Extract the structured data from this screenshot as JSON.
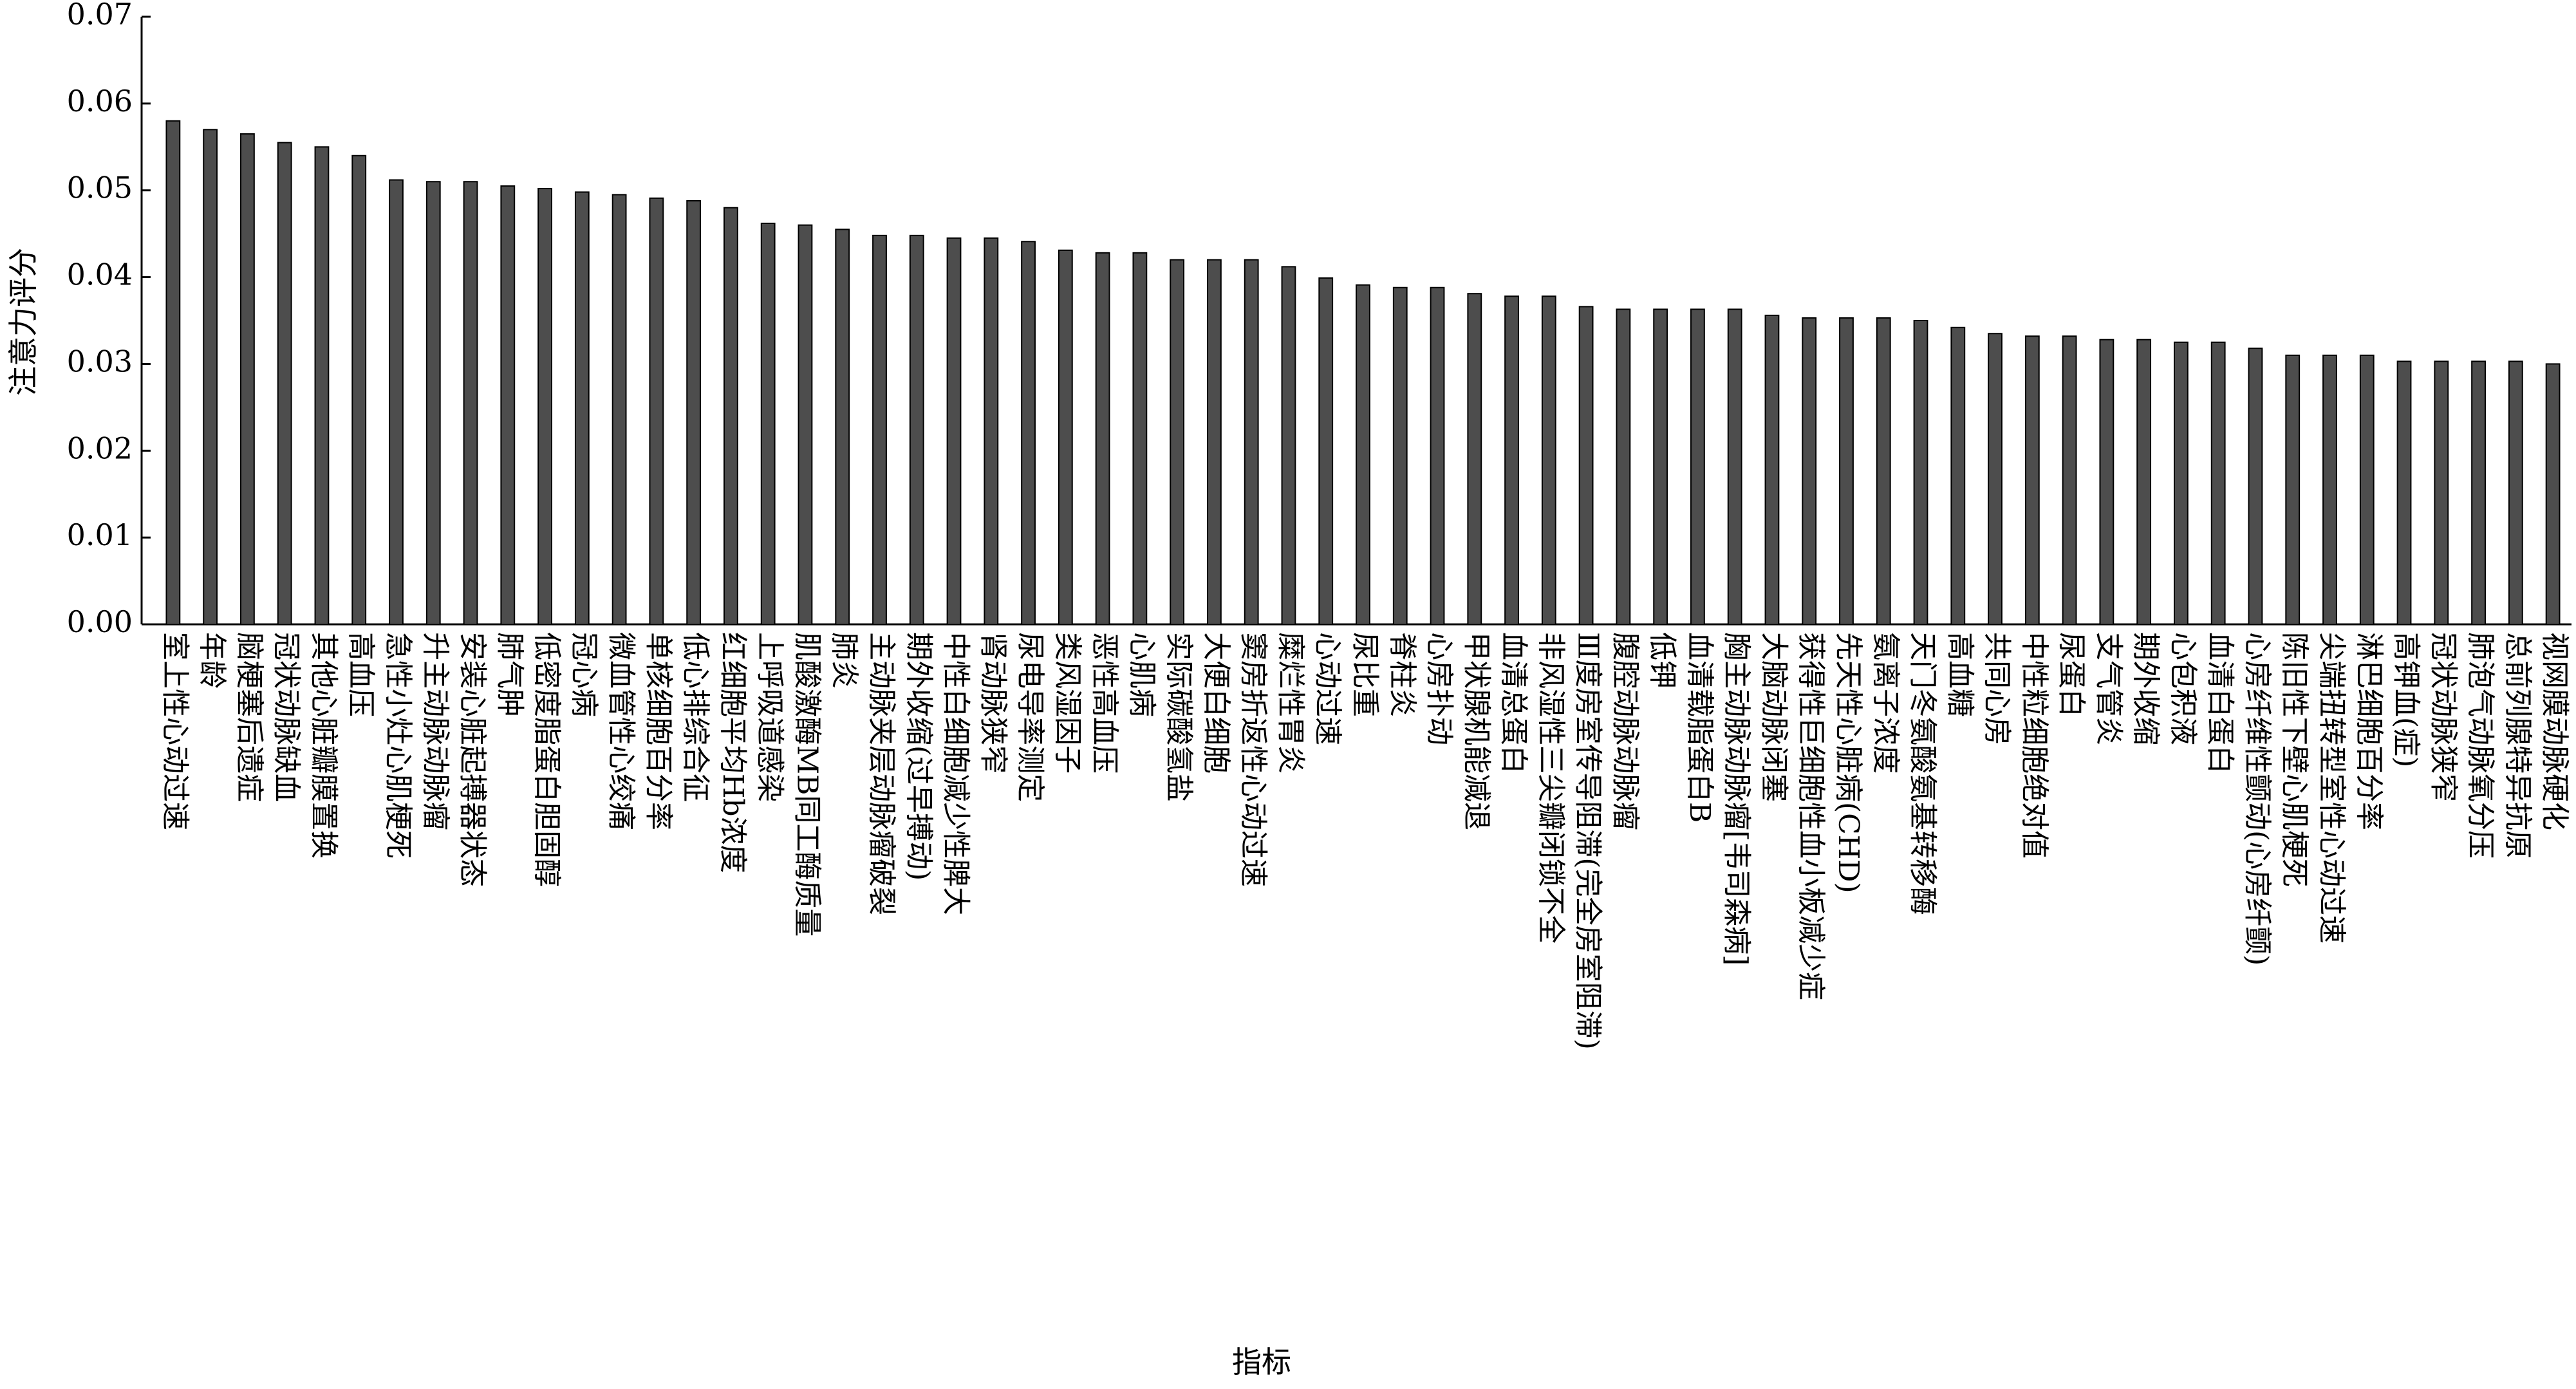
{
  "chart_data": {
    "type": "bar",
    "ylabel": "注意力评分",
    "xlabel": "指标",
    "color": "#4d4d4d",
    "categories": [
      "室上性心动过速",
      "年龄",
      "脑梗塞后遗症",
      "冠状动脉缺血",
      "其他心脏瓣膜置换",
      "高血压",
      "急性小灶心肌梗死",
      "升主动脉动脉瘤",
      "安装心脏起搏器状态",
      "肺气肿",
      "低密度脂蛋白胆固醇",
      "冠心病",
      "微血管性心绞痛",
      "单核细胞百分率",
      "低心排综合征",
      "红细胞平均Hb浓度",
      "上呼吸道感染",
      "肌酸激酶MB同工酶质量",
      "肺炎",
      "主动脉夹层动脉瘤破裂",
      "期外收缩(过早搏动)",
      "中性白细胞减少性脾大",
      "肾动脉狭窄",
      "尿电导率测定",
      "类风湿因子",
      "恶性高血压",
      "心肌病",
      "实际碳酸氢盐",
      "大便白细胞",
      "窦房折返性心动过速",
      "糜烂性胃炎",
      "心动过速",
      "尿比重",
      "脊柱炎",
      "心房扑动",
      "甲状腺机能减退",
      "血清总蛋白",
      "非风湿性三尖瓣闭锁不全",
      "Ⅲ度房室传导阻滞(完全房室阻滞)",
      "腹腔动脉动脉瘤",
      "低钾",
      "血清载脂蛋白B",
      "胸主动脉动脉瘤[韦司森病]",
      "大脑动脉闭塞",
      "获得性巨细胞性血小板减少症",
      "先天性心脏病(CHD)",
      "氨离子浓度",
      "天门冬氨酸氨基转移酶",
      "高血糖",
      "共同心房",
      "中性粒细胞绝对值",
      "尿蛋白",
      "支气管炎",
      "期外收缩",
      "心包积液",
      "血清白蛋白",
      "心房纤维性颤动(心房纤颤)",
      "陈旧性下壁心肌梗死",
      "尖端扭转型室性心动过速",
      "淋巴细胞百分率",
      "高钾血(症)",
      "冠状动脉狭窄",
      "肺泡气动脉氧分压",
      "总前列腺特异抗原",
      "视网膜动脉硬化"
    ],
    "values": [
      0.058,
      0.057,
      0.0565,
      0.0555,
      0.055,
      0.054,
      0.0512,
      0.051,
      0.051,
      0.0505,
      0.0502,
      0.0498,
      0.0495,
      0.0491,
      0.0488,
      0.048,
      0.0462,
      0.046,
      0.0455,
      0.0448,
      0.0448,
      0.0445,
      0.0445,
      0.0441,
      0.0431,
      0.0428,
      0.0428,
      0.042,
      0.042,
      0.042,
      0.0412,
      0.0399,
      0.0391,
      0.0388,
      0.0388,
      0.0381,
      0.0378,
      0.0378,
      0.0366,
      0.0363,
      0.0363,
      0.0363,
      0.0363,
      0.0356,
      0.0353,
      0.0353,
      0.0353,
      0.035,
      0.0342,
      0.0335,
      0.0332,
      0.0332,
      0.0328,
      0.0328,
      0.0325,
      0.0325,
      0.0318,
      0.031,
      0.031,
      0.031,
      0.0303,
      0.0303,
      0.0303,
      0.0303,
      0.03
    ],
    "ylim": [
      0,
      0.07
    ],
    "yticks": [
      {
        "value": 0,
        "label": "0.00"
      },
      {
        "value": 0.01,
        "label": "0.01"
      },
      {
        "value": 0.02,
        "label": "0.02"
      },
      {
        "value": 0.03,
        "label": "0.03"
      },
      {
        "value": 0.04,
        "label": "0.04"
      },
      {
        "value": 0.05,
        "label": "0.05"
      },
      {
        "value": 0.06,
        "label": "0.06"
      },
      {
        "value": 0.07,
        "label": "0.07"
      }
    ]
  }
}
